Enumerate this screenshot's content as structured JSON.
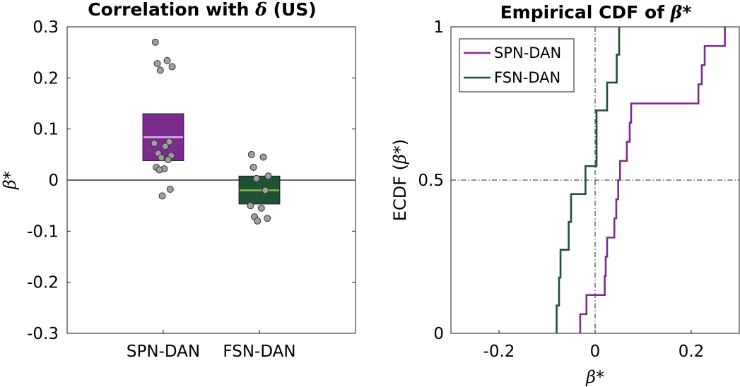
{
  "chart_data": [
    {
      "type": "box",
      "title": "Correlation with δ (US)",
      "title_parts": [
        "Correlation with ",
        "δ",
        " (US)"
      ],
      "ylabel": "β*",
      "ylabel_parts": [
        "β",
        "*"
      ],
      "ylim": [
        -0.3,
        0.3
      ],
      "yticks": [
        0.3,
        0.2,
        0.1,
        0,
        -0.1,
        -0.2,
        -0.3
      ],
      "ytick_labels": [
        "0.3",
        "0.2",
        "0.1",
        "0",
        "-0.1",
        "-0.2",
        "-0.3"
      ],
      "categories": [
        "SPN-DAN",
        "FSN-DAN"
      ],
      "reference_line": 0,
      "grid": false,
      "boxes": [
        {
          "name": "SPN-DAN",
          "q1": 0.038,
          "median": 0.084,
          "q3": 0.13,
          "color": "#7b2d8e",
          "median_color": "#d8b4e6",
          "points": [
            0.27,
            0.234,
            0.228,
            0.222,
            0.215,
            0.075,
            0.072,
            0.066,
            0.052,
            0.048,
            0.044,
            0.04,
            0.025,
            0.022,
            0.02,
            -0.018,
            -0.031
          ]
        },
        {
          "name": "FSN-DAN",
          "q1": -0.047,
          "median": -0.02,
          "q3": 0.008,
          "color": "#1f5235",
          "median_color": "#7dbf4a",
          "points": [
            0.05,
            0.045,
            0.025,
            0.008,
            0.003,
            -0.02,
            -0.05,
            -0.055,
            -0.072,
            -0.075,
            -0.08
          ]
        }
      ],
      "point_color": "#a0a0a0"
    },
    {
      "type": "line",
      "step": true,
      "title": "Empirical CDF of β*",
      "title_parts": [
        "Empirical CDF of ",
        "β",
        "*"
      ],
      "xlabel": "β*",
      "xlabel_parts": [
        "β",
        "*"
      ],
      "ylabel": "ECDF (β*)",
      "ylabel_parts": [
        "ECDF (",
        "β",
        "*)"
      ],
      "xlim": [
        -0.3,
        0.3
      ],
      "ylim": [
        0,
        1
      ],
      "xticks": [
        -0.2,
        0,
        0.2
      ],
      "xtick_labels": [
        "-0.2",
        "0",
        "0.2"
      ],
      "yticks": [
        0,
        0.5,
        1
      ],
      "ytick_labels": [
        "0",
        "0.5",
        "1"
      ],
      "reference_lines": {
        "x": 0,
        "y": 0.5
      },
      "legend_position": "top-left",
      "grid": false,
      "series": [
        {
          "name": "SPN-DAN",
          "color": "#7b2d8e",
          "x": [
            -0.031,
            -0.018,
            0.02,
            0.022,
            0.025,
            0.04,
            0.044,
            0.048,
            0.052,
            0.066,
            0.072,
            0.075,
            0.215,
            0.222,
            0.228,
            0.234,
            0.27
          ],
          "y": [
            0.0625,
            0.125,
            0.1875,
            0.25,
            0.3125,
            0.375,
            0.4375,
            0.5,
            0.5625,
            0.625,
            0.6875,
            0.75,
            0.8125,
            0.875,
            0.9375,
            0.9375,
            1.0
          ]
        },
        {
          "name": "FSN-DAN",
          "color": "#1f5235",
          "x": [
            -0.08,
            -0.075,
            -0.072,
            -0.055,
            -0.05,
            -0.02,
            0.003,
            0.008,
            0.025,
            0.045,
            0.05
          ],
          "y": [
            0.0909,
            0.1818,
            0.2727,
            0.3636,
            0.4545,
            0.5455,
            0.7273,
            0.7273,
            0.8182,
            0.9091,
            1.0
          ]
        }
      ]
    }
  ]
}
